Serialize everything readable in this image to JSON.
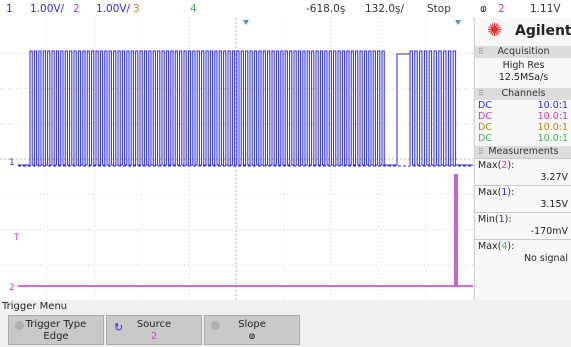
{
  "header": {
    "ch1_num": "1",
    "ch1_scale": "1.00V/",
    "ch2_num": "2",
    "ch2_scale": "1.00V/",
    "ch3_num": "3",
    "ch4_num": "4",
    "time_pos": "-618.0ş",
    "time_scale": "132.0ş/",
    "run_state": "Stop",
    "trig_edge_icon": "ⱷ",
    "trig_src": "2",
    "trig_level": "1.11V"
  },
  "brand": {
    "name": "Agilent",
    "icon": "starburst-icon"
  },
  "acquisition": {
    "title": "Acquisition",
    "mode": "High Res",
    "rate": "12.5MSa/s"
  },
  "channels": {
    "title": "Channels",
    "rows": [
      {
        "coupling": "DC",
        "probe": "10.0:1",
        "color": "#2b2bd9"
      },
      {
        "coupling": "DC",
        "probe": "10.0:1",
        "color": "#c43bc4"
      },
      {
        "coupling": "DC",
        "probe": "10.0:1",
        "color": "#b8860b"
      },
      {
        "coupling": "DC",
        "probe": "10.0:1",
        "color": "#3fb84f"
      }
    ]
  },
  "measurements": {
    "title": "Measurements",
    "items": [
      {
        "pre": "Max(",
        "ch": "2",
        "post": "):",
        "value": "3.27V",
        "ch_color": "#c43bc4"
      },
      {
        "pre": "Max(",
        "ch": "1",
        "post": "):",
        "value": "3.15V",
        "ch_color": "#2b2bd9"
      },
      {
        "pre": "Min(",
        "ch": "1",
        "post": "):",
        "value": "-170mV",
        "ch_color": "#2b2bd9"
      },
      {
        "pre": "Max(",
        "ch": "4",
        "post": "):",
        "value": "No signal",
        "ch_color": "#3fb84f"
      }
    ]
  },
  "markers": {
    "ch1": "1",
    "ch2": "2",
    "trigger": "T"
  },
  "menu": {
    "title": "Trigger Menu",
    "keys": [
      {
        "label": "Trigger Type",
        "value": "Edge"
      },
      {
        "label": "Source",
        "value": "2"
      },
      {
        "label": "Slope",
        "value": "ⱷ"
      }
    ]
  },
  "colors": {
    "ch1": "#2b2bd9",
    "ch2": "#c43bc4",
    "ch3": "#b8860b",
    "ch4": "#3fb84f",
    "brand": "#d33333"
  }
}
